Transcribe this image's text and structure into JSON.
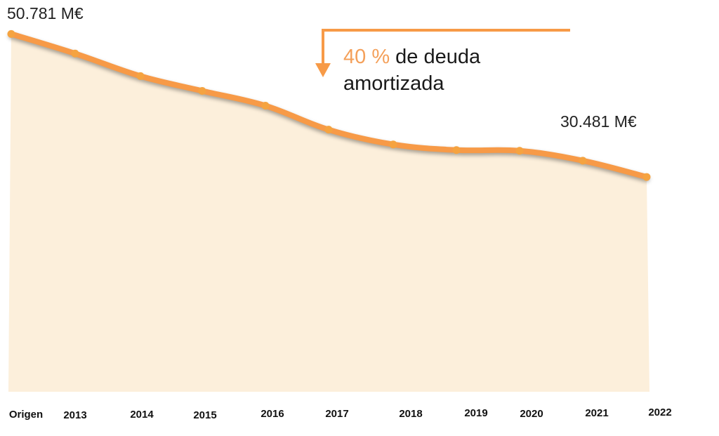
{
  "chart_data": {
    "type": "area",
    "categories": [
      "Origen",
      "2013",
      "2014",
      "2015",
      "2016",
      "2017",
      "2018",
      "2019",
      "2020",
      "2021",
      "2022"
    ],
    "values": [
      50781,
      48000,
      44800,
      42700,
      40600,
      37200,
      35100,
      34300,
      34200,
      32800,
      30481
    ],
    "unit": "M€",
    "ylim": [
      0,
      55600
    ],
    "grid": false,
    "legend": "none",
    "title": "",
    "xlabel": "",
    "ylabel": "",
    "start_label": "50.781 M€",
    "end_label": "30.481 M€",
    "annotation": {
      "percent": "40 %",
      "line1_rest": " de deuda",
      "line2": "amortizada"
    },
    "colors": {
      "line": "#f79a47",
      "marker": "#f5a340",
      "fill": "#fcefdb",
      "arrow": "#f79a47"
    }
  }
}
